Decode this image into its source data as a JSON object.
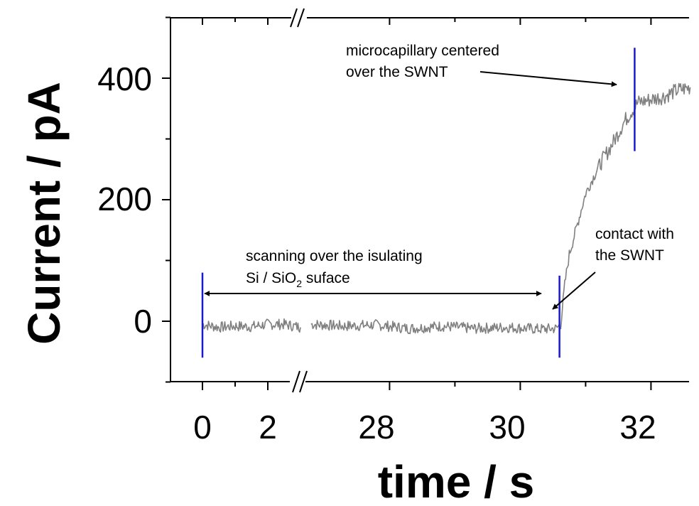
{
  "chart_data": {
    "type": "line",
    "title": "",
    "xlabel": "time / s",
    "ylabel": "Current / pA",
    "x_ticks": [
      "0",
      "2",
      "28",
      "30",
      "32"
    ],
    "y_ticks": [
      "0",
      "200",
      "400"
    ],
    "ylim": [
      -100,
      500
    ],
    "x_segments": [
      {
        "xlim": [
          0,
          3.0
        ]
      },
      {
        "xlim": [
          26.8,
          32.9
        ]
      }
    ],
    "axis_break": "//",
    "grid": false,
    "series": [
      {
        "color": "#808080",
        "segments": [
          {
            "points": [
              [
                0,
                -5
              ],
              [
                0.5,
                -10
              ],
              [
                1.0,
                -8
              ],
              [
                1.5,
                -9
              ],
              [
                2.0,
                -5
              ],
              [
                2.5,
                -5
              ],
              [
                3.0,
                -10
              ]
            ]
          },
          {
            "points": [
              [
                26.8,
                -5
              ],
              [
                27.3,
                -8
              ],
              [
                27.8,
                -6
              ],
              [
                28.3,
                -12
              ],
              [
                28.8,
                -8
              ],
              [
                29.3,
                -12
              ],
              [
                29.8,
                -10
              ],
              [
                30.3,
                -13
              ],
              [
                30.55,
                -12
              ],
              [
                30.62,
                -5
              ],
              [
                30.68,
                60
              ],
              [
                30.75,
                110
              ],
              [
                30.85,
                150
              ],
              [
                31.0,
                210
              ],
              [
                31.2,
                255
              ],
              [
                31.4,
                290
              ],
              [
                31.6,
                330
              ],
              [
                31.8,
                360
              ],
              [
                32.0,
                365
              ],
              [
                32.2,
                370
              ],
              [
                32.4,
                380
              ],
              [
                32.6,
                385
              ]
            ]
          }
        ]
      }
    ],
    "vertical_lines": [
      {
        "x": 0,
        "color": "#1a1acd"
      },
      {
        "x": 30.6,
        "color": "#1a1acd"
      },
      {
        "x": 31.75,
        "color": "#1a1acd"
      }
    ],
    "annotations": [
      {
        "lines": [
          "microcapillary centered",
          "over the SWNT"
        ]
      },
      {
        "lines": [
          "contact with",
          "the SWNT"
        ]
      },
      {
        "line1": "scanning over the isulating",
        "line2_pre": "Si / SiO",
        "line2_sub": "2",
        "line2_post": " suface"
      }
    ]
  }
}
